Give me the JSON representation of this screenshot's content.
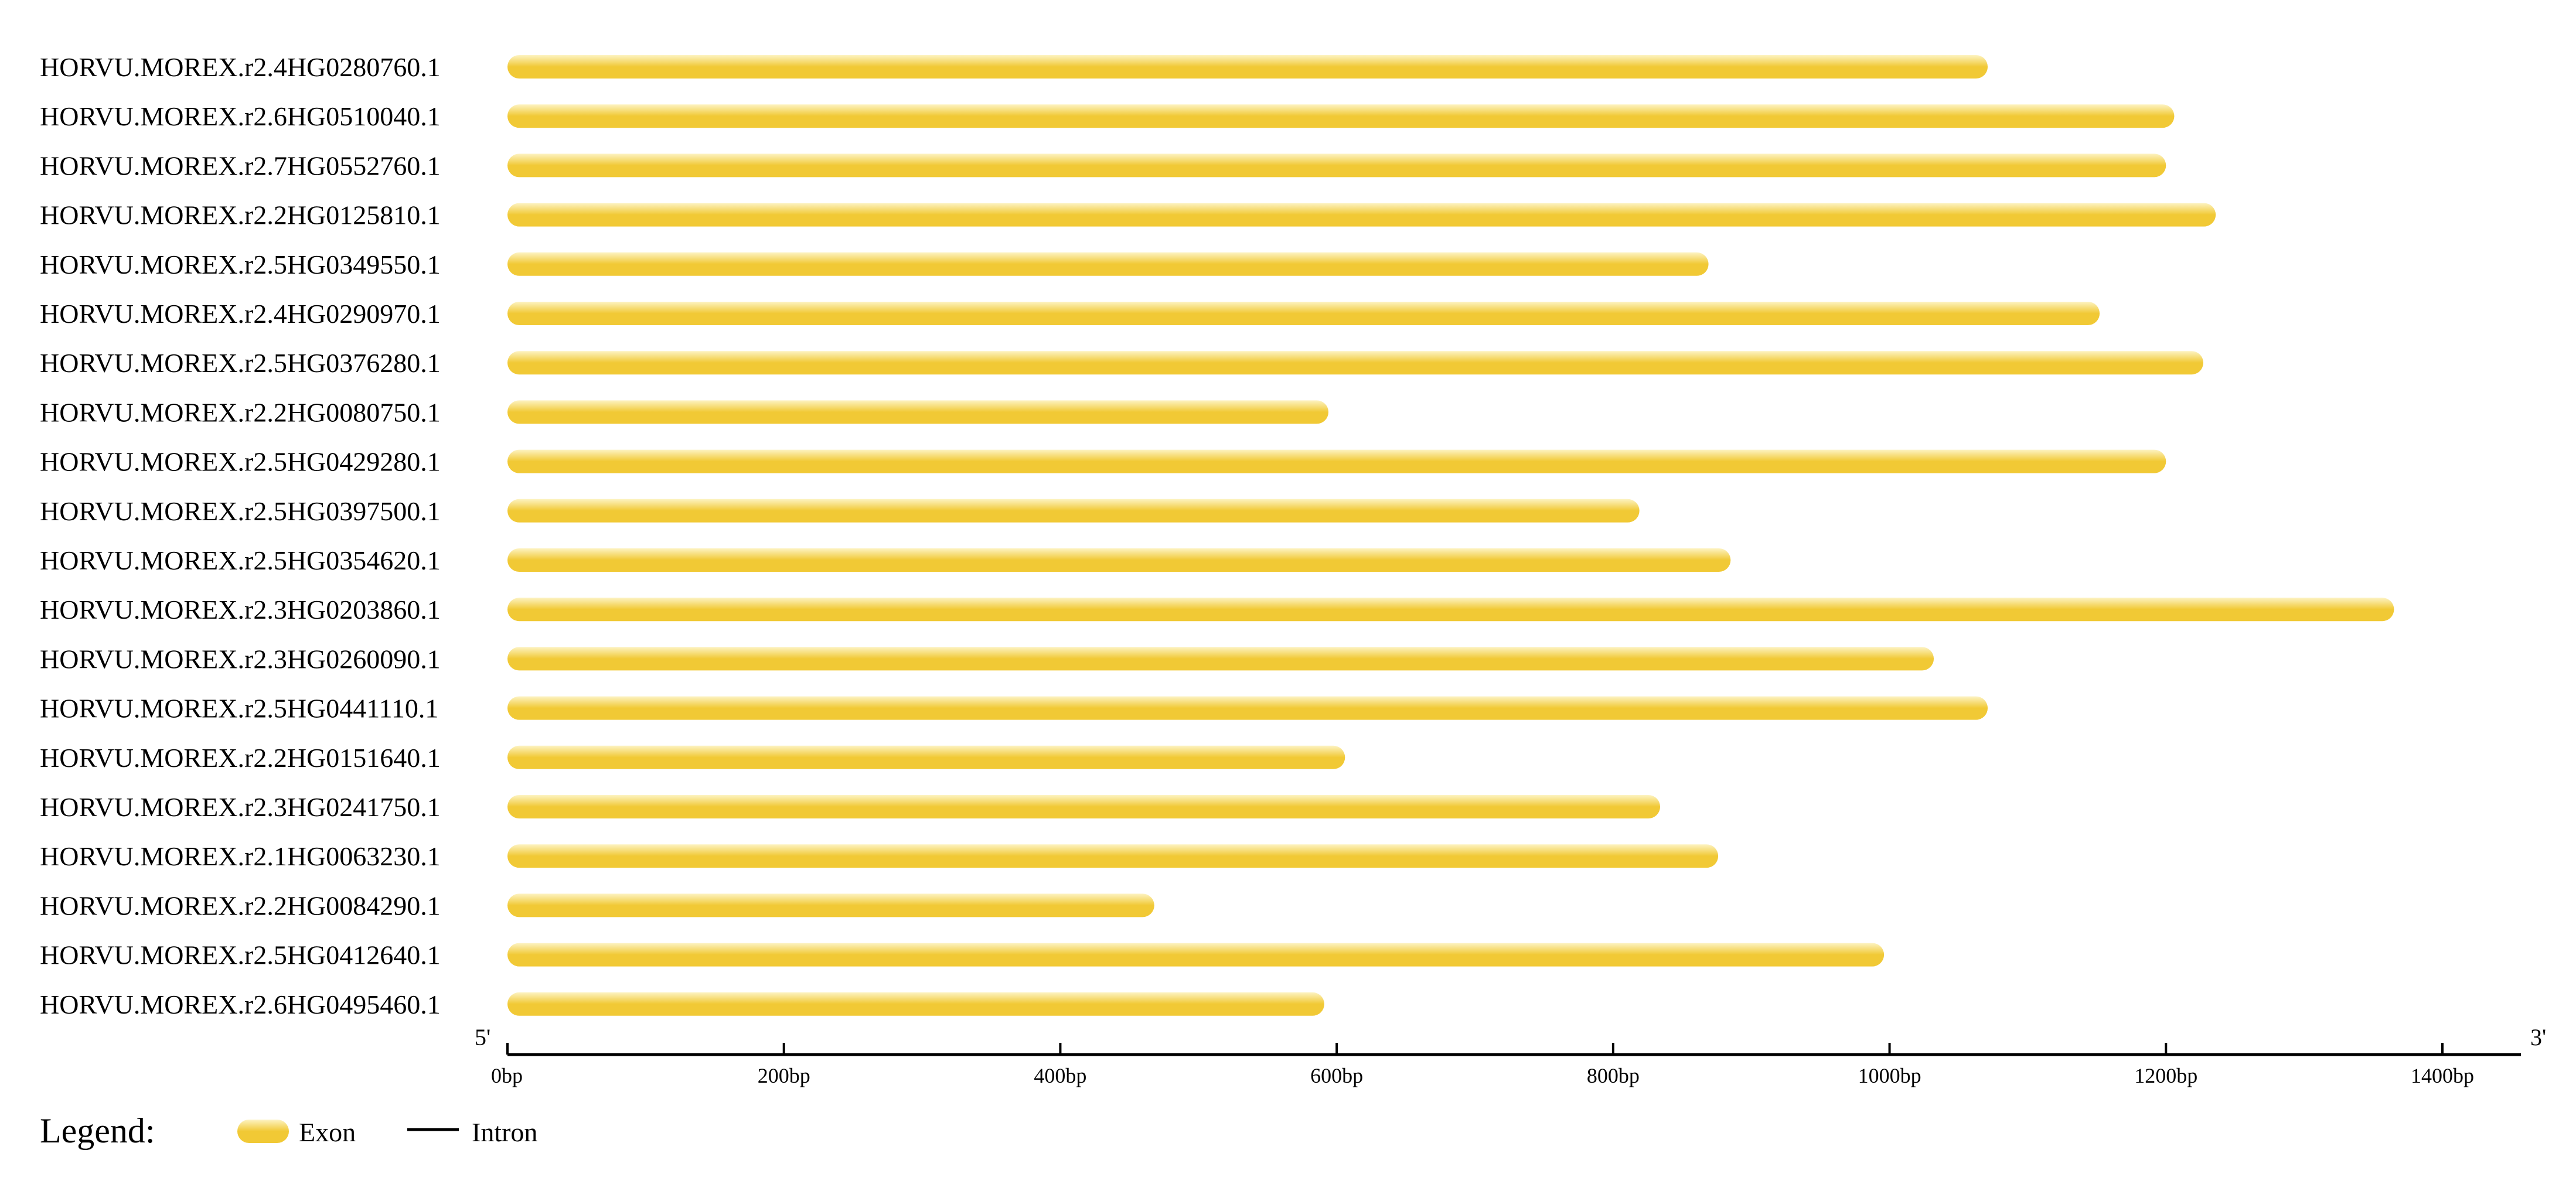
{
  "chart_data": {
    "type": "bar",
    "orientation": "horizontal",
    "x_unit": "bp",
    "xlim": [
      0,
      1460
    ],
    "end_labels": {
      "start": "5'",
      "end": "3'"
    },
    "tick_values": [
      0,
      200,
      400,
      600,
      800,
      1000,
      1200,
      1400
    ],
    "tick_labels": [
      "0bp",
      "200bp",
      "400bp",
      "600bp",
      "800bp",
      "1000bp",
      "1200bp",
      "1400bp"
    ],
    "categories": [
      "HORVU.MOREX.r2.4HG0280760.1",
      "HORVU.MOREX.r2.6HG0510040.1",
      "HORVU.MOREX.r2.7HG0552760.1",
      "HORVU.MOREX.r2.2HG0125810.1",
      "HORVU.MOREX.r2.5HG0349550.1",
      "HORVU.MOREX.r2.4HG0290970.1",
      "HORVU.MOREX.r2.5HG0376280.1",
      "HORVU.MOREX.r2.2HG0080750.1",
      "HORVU.MOREX.r2.5HG0429280.1",
      "HORVU.MOREX.r2.5HG0397500.1",
      "HORVU.MOREX.r2.5HG0354620.1",
      "HORVU.MOREX.r2.3HG0203860.1",
      "HORVU.MOREX.r2.3HG0260090.1",
      "HORVU.MOREX.r2.5HG0441110.1",
      "HORVU.MOREX.r2.2HG0151640.1",
      "HORVU.MOREX.r2.3HG0241750.1",
      "HORVU.MOREX.r2.1HG0063230.1",
      "HORVU.MOREX.r2.2HG0084290.1",
      "HORVU.MOREX.r2.5HG0412640.1",
      "HORVU.MOREX.r2.6HG0495460.1"
    ],
    "series": [
      {
        "name": "Exon",
        "values": [
          1071,
          1206,
          1200,
          1236,
          869,
          1152,
          1227,
          594,
          1200,
          819,
          885,
          1365,
          1032,
          1071,
          606,
          834,
          876,
          468,
          996,
          591
        ]
      }
    ],
    "legend": {
      "title": "Legend:",
      "placement": "bottom-left",
      "items": [
        {
          "label": "Exon",
          "kind": "exon"
        },
        {
          "label": "Intron",
          "kind": "intron"
        }
      ]
    },
    "grid": false
  },
  "colors": {
    "exon_dark": "#f1c935",
    "exon_light": "#fdf3c2",
    "intron": "#000000",
    "axis": "#000000"
  }
}
